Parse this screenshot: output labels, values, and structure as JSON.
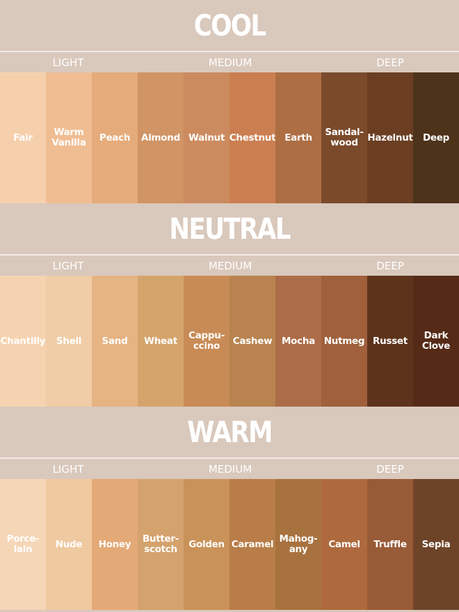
{
  "tiers": [
    "LIGHT",
    "MEDIUM",
    "DEEP"
  ],
  "sections": [
    {
      "title": "COOL",
      "swatches": [
        {
          "name": "Fair",
          "color": "#f6d0ad"
        },
        {
          "name": "Warm\nVanilla",
          "color": "#f0bd93"
        },
        {
          "name": "Peach",
          "color": "#e5ab7a"
        },
        {
          "name": "Almond",
          "color": "#d09465"
        },
        {
          "name": "Walnut",
          "color": "#cc8b5f"
        },
        {
          "name": "Chestnut",
          "color": "#cb7f51"
        },
        {
          "name": "Earth",
          "color": "#ad6e44"
        },
        {
          "name": "Sandal-\nwood",
          "color": "#7a4a2b"
        },
        {
          "name": "Hazelnut",
          "color": "#6b3e22"
        },
        {
          "name": "Deep",
          "color": "#4e331b"
        }
      ]
    },
    {
      "title": "NEUTRAL",
      "swatches": [
        {
          "name": "Chantilly",
          "color": "#f6d3b0"
        },
        {
          "name": "Shell",
          "color": "#f0cda6"
        },
        {
          "name": "Sand",
          "color": "#e6b383"
        },
        {
          "name": "Wheat",
          "color": "#d5a46c"
        },
        {
          "name": "Cappu-\nccino",
          "color": "#c98b56"
        },
        {
          "name": "Cashew",
          "color": "#b8834f"
        },
        {
          "name": "Mocha",
          "color": "#ac6c47"
        },
        {
          "name": "Nutmeg",
          "color": "#9f603b"
        },
        {
          "name": "Russet",
          "color": "#5e331b"
        },
        {
          "name": "Dark\nClove",
          "color": "#552b17"
        }
      ]
    },
    {
      "title": "WARM",
      "swatches": [
        {
          "name": "Porce-\nlain",
          "color": "#f5d6b7"
        },
        {
          "name": "Nude",
          "color": "#efc9a0"
        },
        {
          "name": "Honey",
          "color": "#e3a977"
        },
        {
          "name": "Butter-\nscotch",
          "color": "#d4a26c"
        },
        {
          "name": "Golden",
          "color": "#c99259"
        },
        {
          "name": "Caramel",
          "color": "#b87d48"
        },
        {
          "name": "Mahog-\nany",
          "color": "#a8723f"
        },
        {
          "name": "Camel",
          "color": "#ae6a3e"
        },
        {
          "name": "Truffle",
          "color": "#985b37"
        },
        {
          "name": "Sepia",
          "color": "#6e4429"
        }
      ]
    }
  ]
}
